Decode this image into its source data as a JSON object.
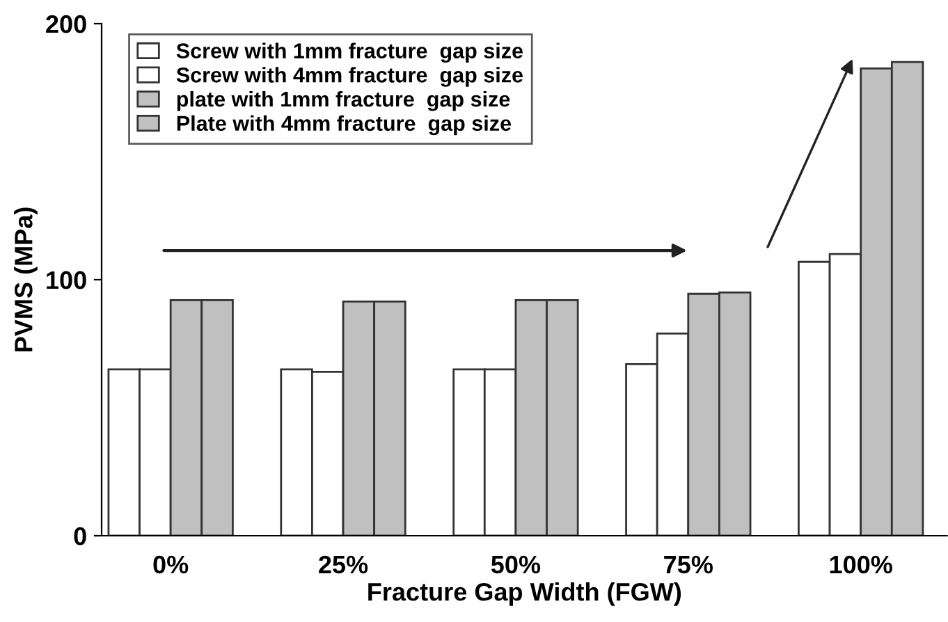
{
  "chart_data": {
    "type": "bar",
    "xlabel": "Fracture Gap Width (FGW)",
    "ylabel": "PVMS (MPa)",
    "categories": [
      "0%",
      "25%",
      "50%",
      "75%",
      "100%"
    ],
    "series": [
      {
        "name": "Screw with 1mm fracture  gap size",
        "color": "#ffffff",
        "values": [
          65,
          65,
          65,
          67,
          107
        ]
      },
      {
        "name": "Screw with 4mm fracture  gap size",
        "color": "#ffffff",
        "values": [
          65,
          64,
          65,
          79,
          110
        ]
      },
      {
        "name": "plate with 1mm fracture  gap size",
        "color": "#c0c0c0",
        "values": [
          92,
          91.5,
          92,
          94.5,
          182.5
        ]
      },
      {
        "name": "Plate with 4mm fracture  gap size",
        "color": "#c0c0c0",
        "values": [
          92,
          91.5,
          92,
          95,
          185
        ]
      }
    ],
    "ylim": [
      0,
      200
    ],
    "yticks": [
      0,
      100,
      200
    ],
    "grid": false,
    "legend": "top left"
  }
}
